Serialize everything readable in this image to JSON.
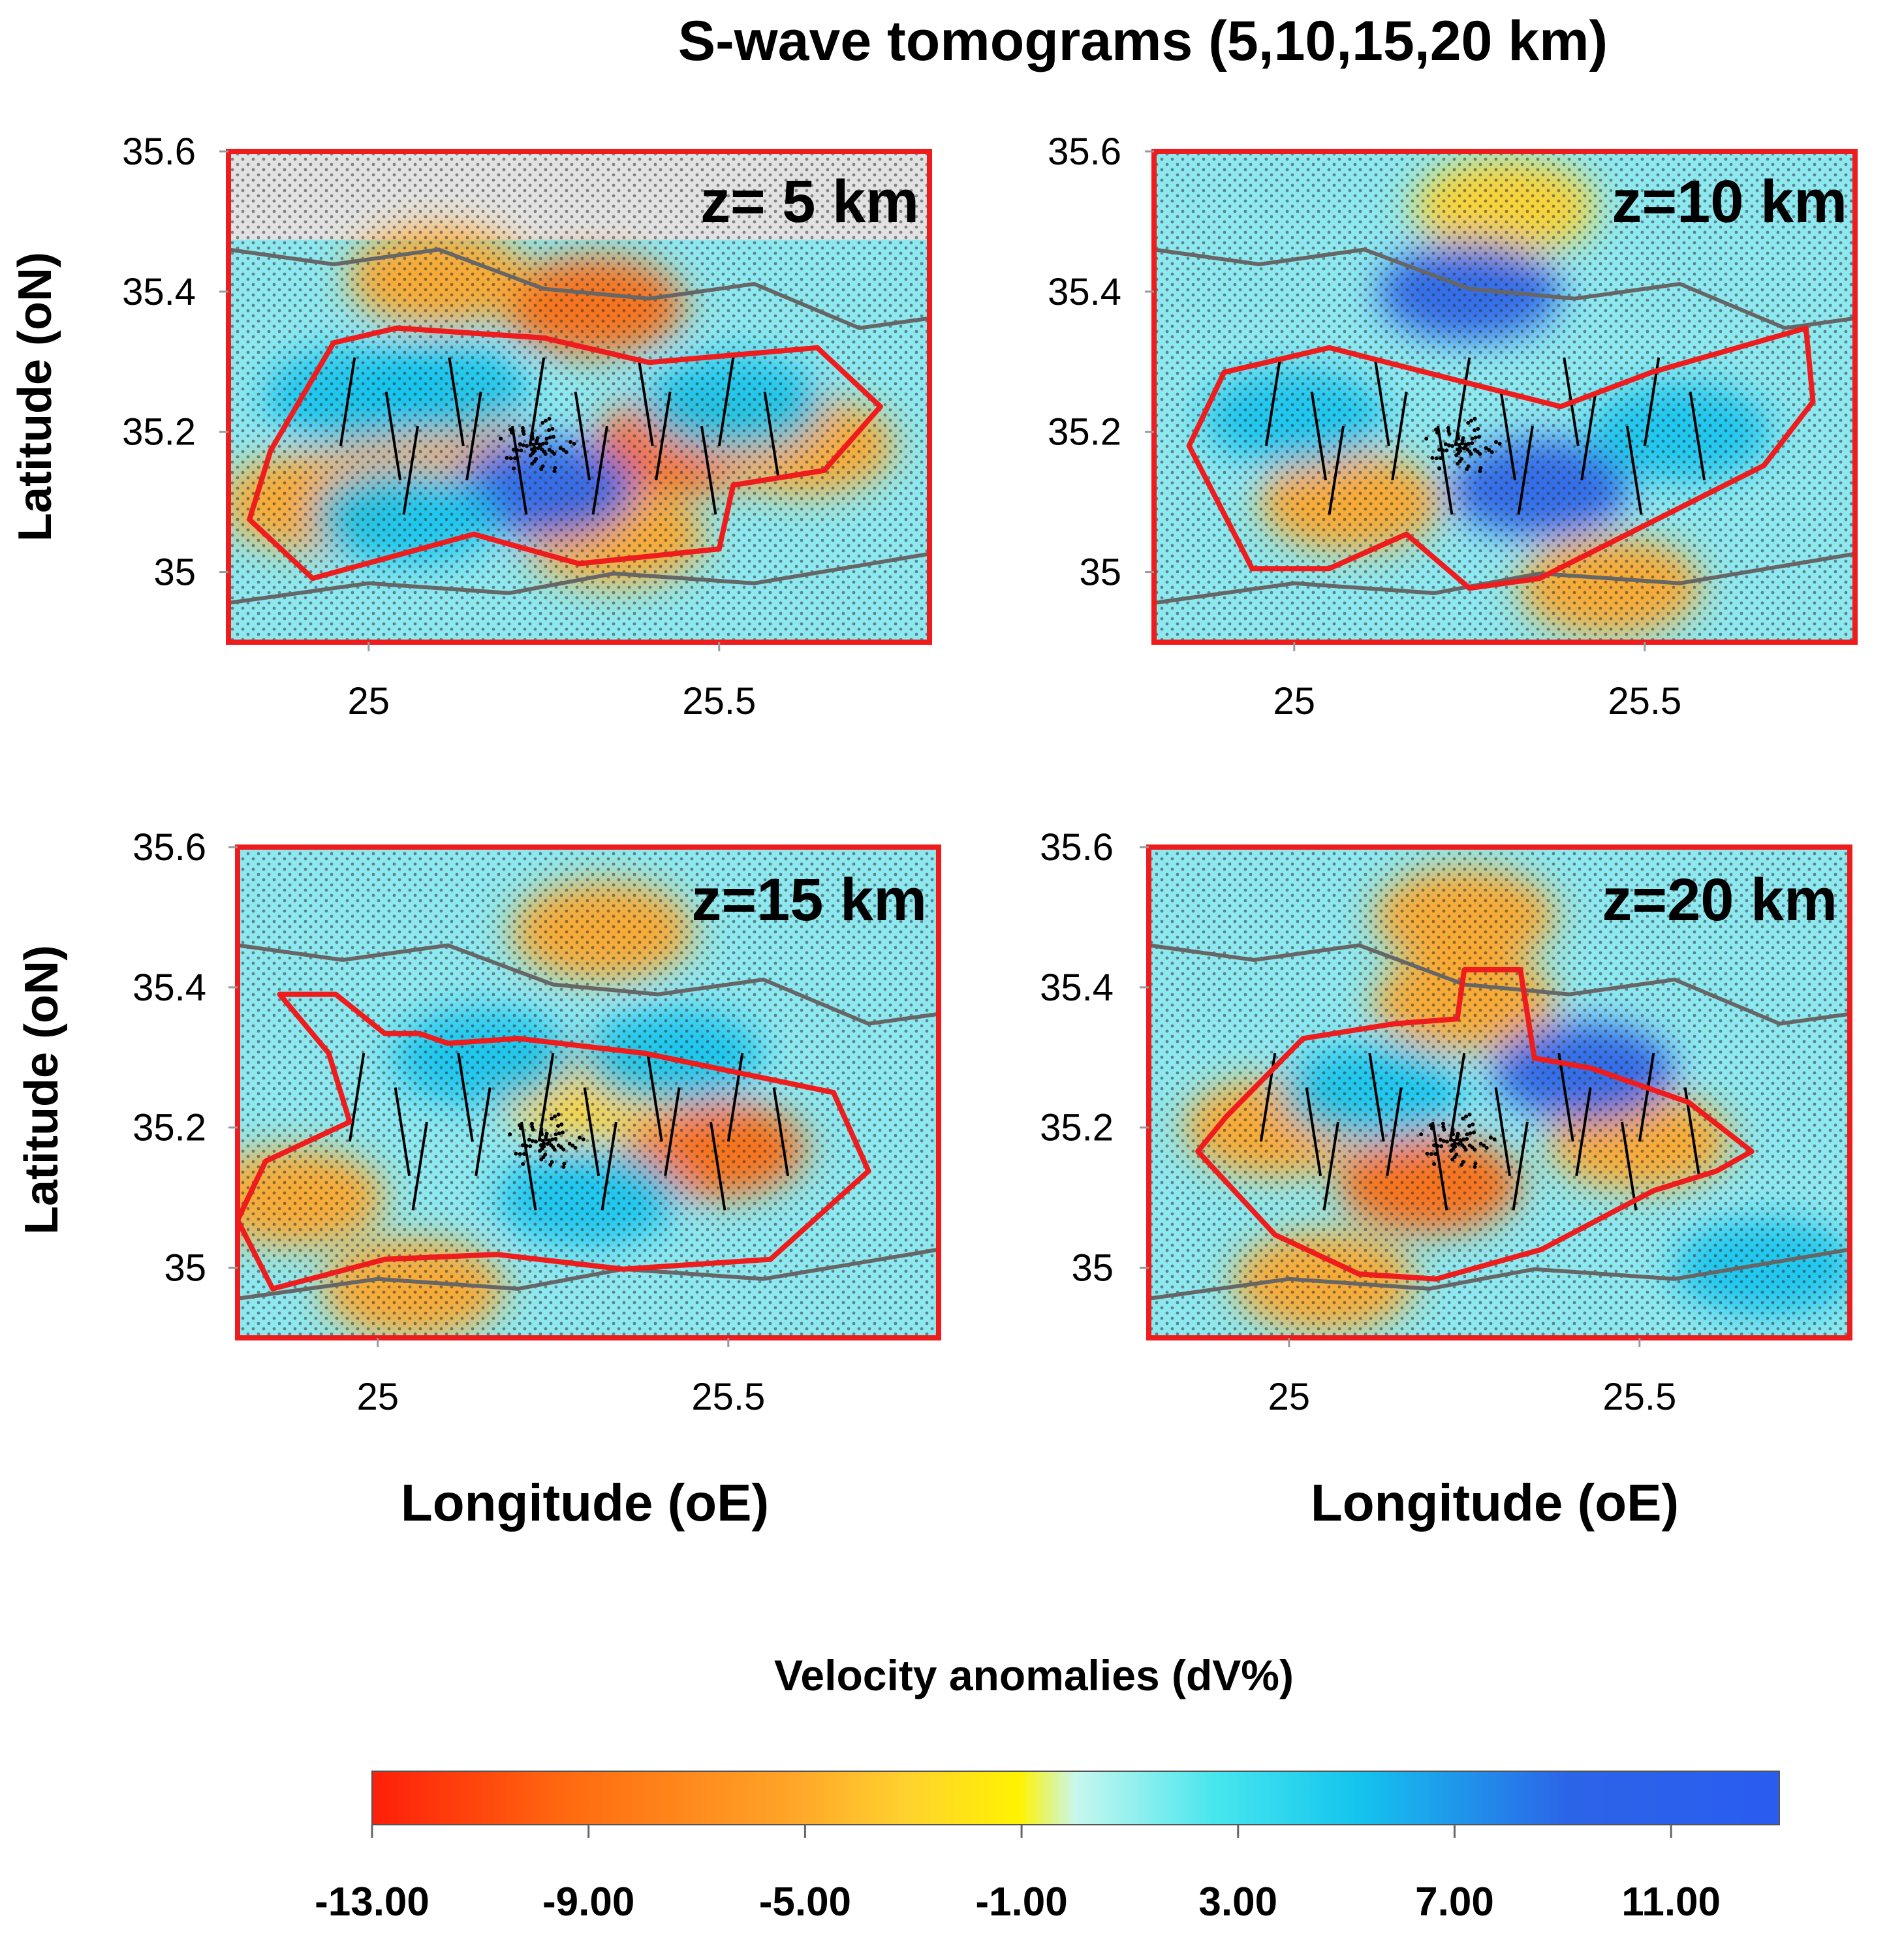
{
  "figure": {
    "title": "S-wave tomograms (5,10,15,20 km)",
    "colorbar_title": "Velocity anomalies (dV%)",
    "colorbar_ticks": [
      "-13.00",
      "-9.00",
      "-5.00",
      "-1.00",
      "3.00",
      "7.00",
      "11.00"
    ],
    "colorbar_tick_values": [
      -13,
      -9,
      -5,
      -1,
      3,
      7,
      11
    ],
    "colorbar_range": [
      -13,
      13
    ],
    "colorbar_colors": [
      "#ff1e0a",
      "#ff6a10",
      "#ffa628",
      "#ffd22e",
      "#fff200",
      "#c8f7ee",
      "#46e6ee",
      "#14c4ee",
      "#2c64e8",
      "#2a5cf0"
    ]
  },
  "chart_data": [
    {
      "type": "heatmap",
      "title": "z= 5 km",
      "depth_km": 5,
      "xlabel": "",
      "ylabel": "Latitude (oN)",
      "xlim": [
        24.8,
        25.8
      ],
      "ylim": [
        34.9,
        35.6
      ],
      "xticks": [
        25,
        25.5
      ],
      "xtick_labels": [
        "25",
        "25.5"
      ],
      "yticks": [
        35,
        35.2,
        35.4,
        35.6
      ],
      "ytick_labels": [
        "35",
        "35.2",
        "35.4",
        "35.6"
      ],
      "anomaly_patches": [
        {
          "lon": 25.32,
          "lat": 35.38,
          "value": -8
        },
        {
          "lon": 25.1,
          "lat": 35.42,
          "value": -5
        },
        {
          "lon": 25.45,
          "lat": 35.18,
          "value": -9
        },
        {
          "lon": 25.62,
          "lat": 35.18,
          "value": -6
        },
        {
          "lon": 25.08,
          "lat": 35.2,
          "value": -6
        },
        {
          "lon": 24.92,
          "lat": 35.1,
          "value": -5
        },
        {
          "lon": 25.35,
          "lat": 35.05,
          "value": -5
        },
        {
          "lon": 25.25,
          "lat": 35.12,
          "value": 9
        },
        {
          "lon": 25.1,
          "lat": 35.26,
          "value": 7
        },
        {
          "lon": 25.52,
          "lat": 35.24,
          "value": 6
        },
        {
          "lon": 25.05,
          "lat": 35.08,
          "value": 5
        },
        {
          "lon": 24.98,
          "lat": 35.25,
          "value": 4
        }
      ]
    },
    {
      "type": "heatmap",
      "title": "z=10 km",
      "depth_km": 10,
      "xlabel": "",
      "ylabel": "",
      "xlim": [
        24.8,
        25.8
      ],
      "ylim": [
        34.9,
        35.6
      ],
      "xticks": [
        25,
        25.5
      ],
      "xtick_labels": [
        "25",
        "25.5"
      ],
      "yticks": [
        35,
        35.2,
        35.4,
        35.6
      ],
      "ytick_labels": [
        "35",
        "35.2",
        "35.4",
        "35.6"
      ],
      "anomaly_patches": [
        {
          "lon": 25.08,
          "lat": 35.1,
          "value": -6
        },
        {
          "lon": 25.3,
          "lat": 35.52,
          "value": -4
        },
        {
          "lon": 25.45,
          "lat": 34.98,
          "value": -5
        },
        {
          "lon": 25.25,
          "lat": 35.4,
          "value": 9
        },
        {
          "lon": 25.35,
          "lat": 35.12,
          "value": 8
        },
        {
          "lon": 25.55,
          "lat": 35.2,
          "value": 6
        },
        {
          "lon": 25.0,
          "lat": 35.22,
          "value": 4
        }
      ]
    },
    {
      "type": "heatmap",
      "title": "z=15 km",
      "depth_km": 15,
      "xlabel": "Longitude (oE)",
      "ylabel": "Latitude (oN)",
      "xlim": [
        24.8,
        25.8
      ],
      "ylim": [
        34.9,
        35.6
      ],
      "xticks": [
        25,
        25.5
      ],
      "xtick_labels": [
        "25",
        "25.5"
      ],
      "yticks": [
        35,
        35.2,
        35.4,
        35.6
      ],
      "ytick_labels": [
        "35",
        "35.2",
        "35.4",
        "35.6"
      ],
      "anomaly_patches": [
        {
          "lon": 25.48,
          "lat": 35.17,
          "value": -8
        },
        {
          "lon": 25.32,
          "lat": 35.48,
          "value": -5
        },
        {
          "lon": 24.88,
          "lat": 35.1,
          "value": -5
        },
        {
          "lon": 25.05,
          "lat": 34.97,
          "value": -7
        },
        {
          "lon": 25.3,
          "lat": 35.25,
          "value": -4
        },
        {
          "lon": 25.15,
          "lat": 35.3,
          "value": 6
        },
        {
          "lon": 25.42,
          "lat": 35.3,
          "value": 7
        },
        {
          "lon": 25.3,
          "lat": 35.1,
          "value": 4
        }
      ]
    },
    {
      "type": "heatmap",
      "title": "z=20 km",
      "depth_km": 20,
      "xlabel": "Longitude (oE)",
      "ylabel": "",
      "xlim": [
        24.8,
        25.8
      ],
      "ylim": [
        34.9,
        35.6
      ],
      "xticks": [
        25,
        25.5
      ],
      "xtick_labels": [
        "25",
        "25.5"
      ],
      "yticks": [
        35,
        35.2,
        35.4,
        35.6
      ],
      "ytick_labels": [
        "35",
        "35.2",
        "35.4",
        "35.6"
      ],
      "anomaly_patches": [
        {
          "lon": 25.25,
          "lat": 35.5,
          "value": -6
        },
        {
          "lon": 25.25,
          "lat": 35.38,
          "value": -5
        },
        {
          "lon": 24.98,
          "lat": 35.2,
          "value": -6
        },
        {
          "lon": 25.2,
          "lat": 35.12,
          "value": -8
        },
        {
          "lon": 25.5,
          "lat": 35.18,
          "value": -7
        },
        {
          "lon": 25.05,
          "lat": 34.98,
          "value": -5
        },
        {
          "lon": 25.42,
          "lat": 35.28,
          "value": 9
        },
        {
          "lon": 25.12,
          "lat": 35.25,
          "value": 6
        },
        {
          "lon": 25.68,
          "lat": 35.0,
          "value": 7
        }
      ]
    }
  ]
}
